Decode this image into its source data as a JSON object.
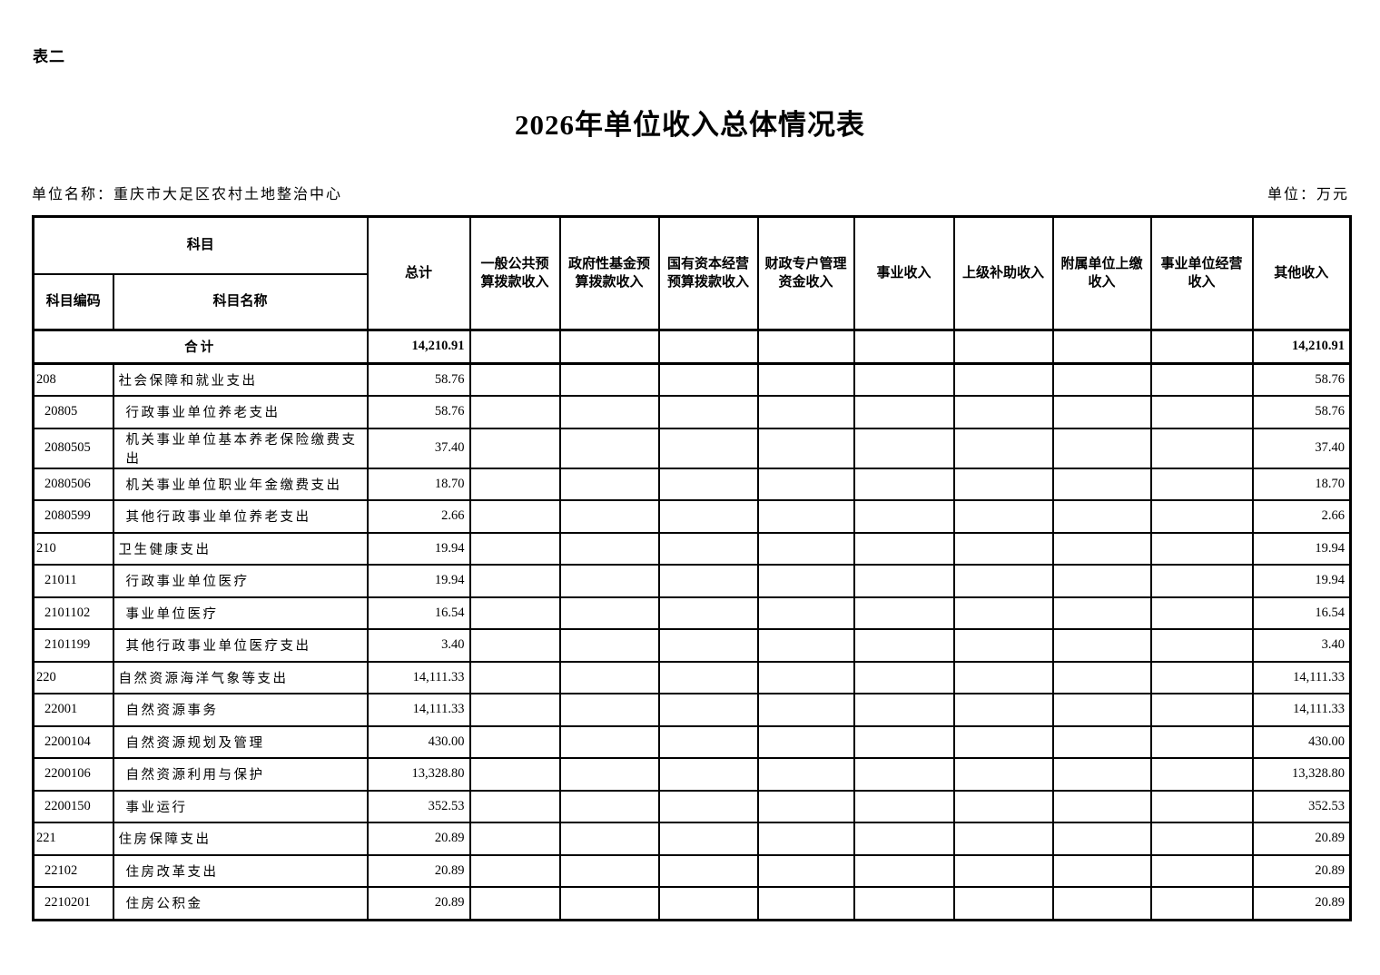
{
  "page": {
    "table_label": "表二",
    "title": "2026年单位收入总体情况表",
    "unit_name_label": "单位名称：",
    "unit_name": "重庆市大足区农村土地整治中心",
    "unit_of_measure_label": "单位：万元"
  },
  "table": {
    "header": {
      "subject": "科目",
      "subject_code": "科目编码",
      "subject_name": "科目名称",
      "columns": [
        "总计",
        "一般公共预\n算拨款收入",
        "政府性基金预\n算拨款收入",
        "国有资本经营\n预算拨款收入",
        "财政专户管理\n资金收入",
        "事业收入",
        "上级补助收入",
        "附属单位上缴\n收入",
        "事业单位经营\n收入",
        "其他收入"
      ],
      "empty_middle_column_count": 8
    },
    "total_row": {
      "label": "合计",
      "total": "14,210.91",
      "other_income": "14,210.91"
    },
    "rows": [
      {
        "code": "208",
        "name": "社会保障和就业支出",
        "total": "58.76",
        "other_income": "58.76"
      },
      {
        "code": "20805",
        "name": "行政事业单位养老支出",
        "total": "58.76",
        "other_income": "58.76"
      },
      {
        "code": "2080505",
        "name": "机关事业单位基本养老保险缴费支出",
        "total": "37.40",
        "other_income": "37.40"
      },
      {
        "code": "2080506",
        "name": "机关事业单位职业年金缴费支出",
        "total": "18.70",
        "other_income": "18.70"
      },
      {
        "code": "2080599",
        "name": "其他行政事业单位养老支出",
        "total": "2.66",
        "other_income": "2.66"
      },
      {
        "code": "210",
        "name": "卫生健康支出",
        "total": "19.94",
        "other_income": "19.94"
      },
      {
        "code": "21011",
        "name": "行政事业单位医疗",
        "total": "19.94",
        "other_income": "19.94"
      },
      {
        "code": "2101102",
        "name": "事业单位医疗",
        "total": "16.54",
        "other_income": "16.54"
      },
      {
        "code": "2101199",
        "name": "其他行政事业单位医疗支出",
        "total": "3.40",
        "other_income": "3.40"
      },
      {
        "code": "220",
        "name": "自然资源海洋气象等支出",
        "total": "14,111.33",
        "other_income": "14,111.33"
      },
      {
        "code": "22001",
        "name": "自然资源事务",
        "total": "14,111.33",
        "other_income": "14,111.33"
      },
      {
        "code": "2200104",
        "name": "自然资源规划及管理",
        "total": "430.00",
        "other_income": "430.00"
      },
      {
        "code": "2200106",
        "name": "自然资源利用与保护",
        "total": "13,328.80",
        "other_income": "13,328.80"
      },
      {
        "code": "2200150",
        "name": "事业运行",
        "total": "352.53",
        "other_income": "352.53"
      },
      {
        "code": "221",
        "name": "住房保障支出",
        "total": "20.89",
        "other_income": "20.89"
      },
      {
        "code": "22102",
        "name": "住房改革支出",
        "total": "20.89",
        "other_income": "20.89"
      },
      {
        "code": "2210201",
        "name": "住房公积金",
        "total": "20.89",
        "other_income": "20.89"
      }
    ]
  }
}
